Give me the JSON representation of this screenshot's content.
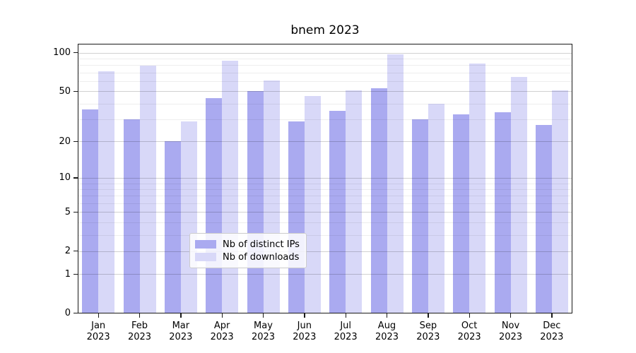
{
  "chart_data": {
    "type": "bar",
    "title": "bnem 2023",
    "categories": [
      "Jan 2023",
      "Feb 2023",
      "Mar 2023",
      "Apr 2023",
      "May 2023",
      "Jun 2023",
      "Jul 2023",
      "Aug 2023",
      "Sep 2023",
      "Oct 2023",
      "Nov 2023",
      "Dec 2023"
    ],
    "series": [
      {
        "name": "Nb of distinct IPs",
        "color": "#aaaaf0",
        "values": [
          36,
          30,
          20,
          44,
          50,
          29,
          35,
          53,
          30,
          33,
          34,
          27
        ]
      },
      {
        "name": "Nb of downloads",
        "color": "#d8d8f8",
        "values": [
          72,
          79,
          29,
          87,
          61,
          46,
          51,
          97,
          40,
          82,
          65,
          51
        ]
      }
    ],
    "yscale": "log1p",
    "yticks": [
      100,
      50,
      20,
      10,
      5,
      2,
      1,
      0
    ],
    "minor_yticks": [
      3,
      4,
      6,
      7,
      8,
      9,
      30,
      40,
      60,
      70,
      80,
      90
    ],
    "ylim": [
      0,
      118
    ],
    "xlabel": "",
    "ylabel": "",
    "grid": "on",
    "legend_position": "lower center"
  }
}
